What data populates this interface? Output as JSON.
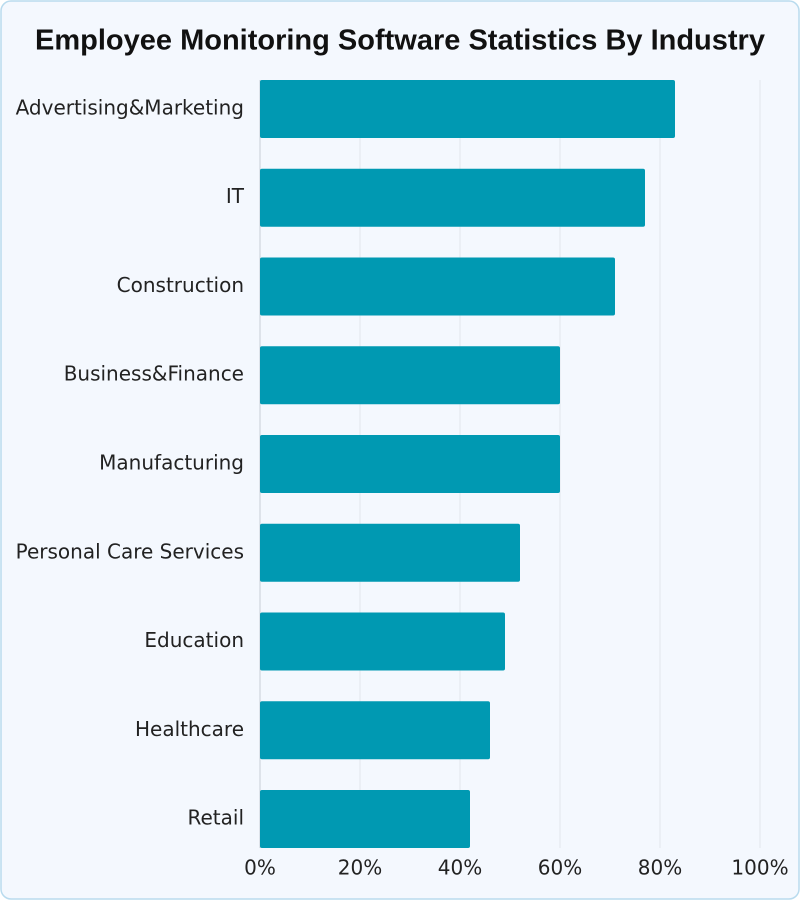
{
  "chart_data": {
    "type": "bar",
    "orientation": "horizontal",
    "title": "Employee Monitoring Software Statistics By Industry",
    "categories": [
      "Advertising&Marketing",
      "IT",
      "Construction",
      "Business&Finance",
      "Manufacturing",
      "Personal Care Services",
      "Education",
      "Healthcare",
      "Retail"
    ],
    "values": [
      83,
      77,
      71,
      60,
      60,
      52,
      49,
      46,
      42
    ],
    "color": "#0099b2",
    "xlim": [
      0,
      100
    ],
    "xticks": [
      {
        "value": 0,
        "label": "0%"
      },
      {
        "value": 20,
        "label": "20%"
      },
      {
        "value": 40,
        "label": "40%"
      },
      {
        "value": 60,
        "label": "60%"
      },
      {
        "value": 80,
        "label": "80%"
      },
      {
        "value": 100,
        "label": "100%"
      }
    ],
    "grid": true
  }
}
